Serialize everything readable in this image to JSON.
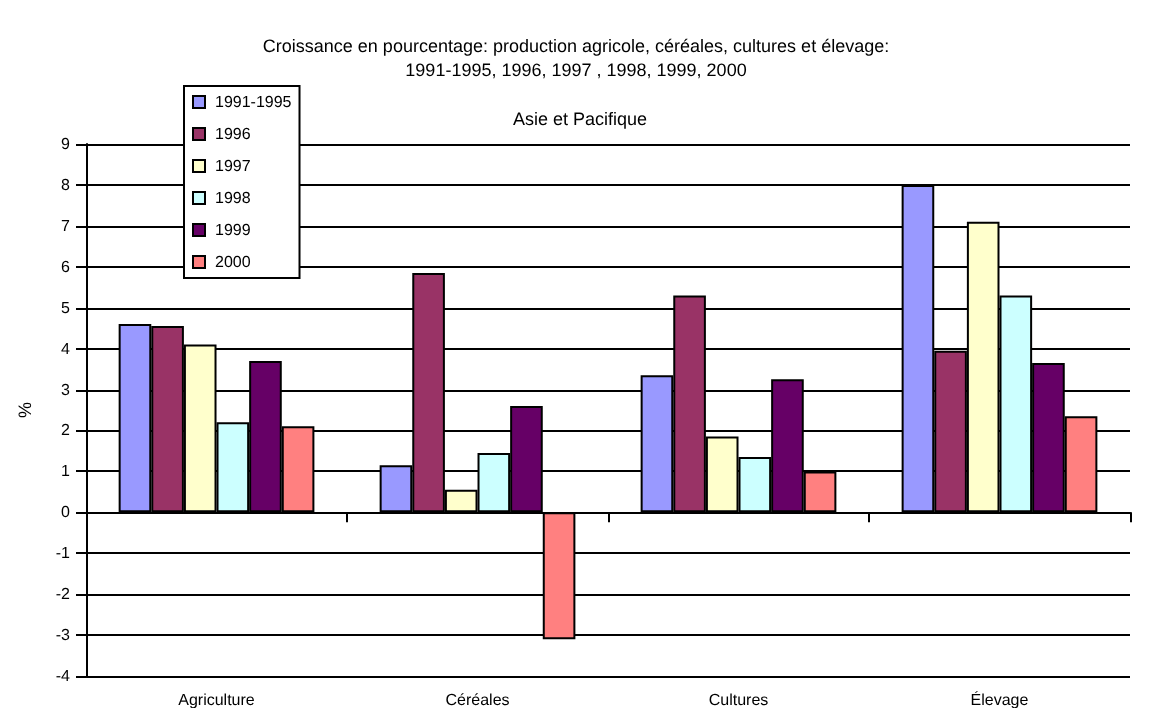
{
  "chart_data": {
    "type": "bar",
    "title": "Croissance en pourcentage: production agricole, céréales, cultures et élevage:\n1991-1995, 1996, 1997 , 1998, 1999, 2000",
    "subtitle": "Asie et Pacifique",
    "ylabel": "%",
    "categories": [
      "Agriculture",
      "Céréales",
      "Cultures",
      "Élevage"
    ],
    "series": [
      {
        "name": "1991-1995",
        "color": "#9999ff",
        "values": [
          4.6,
          1.15,
          3.35,
          8.0
        ]
      },
      {
        "name": "1996",
        "color": "#993366",
        "values": [
          4.55,
          5.85,
          5.3,
          3.95
        ]
      },
      {
        "name": "1997",
        "color": "#ffffcc",
        "values": [
          4.1,
          0.55,
          1.85,
          7.1
        ]
      },
      {
        "name": "1998",
        "color": "#ccffff",
        "values": [
          2.2,
          1.45,
          1.35,
          5.3
        ]
      },
      {
        "name": "1999",
        "color": "#660066",
        "values": [
          3.7,
          2.6,
          3.25,
          3.65
        ]
      },
      {
        "name": "2000",
        "color": "#ff8080",
        "values": [
          2.1,
          -3.1,
          1.0,
          2.35
        ]
      }
    ],
    "ylim": [
      -4,
      9
    ],
    "yticks": [
      -4,
      -3,
      -2,
      -1,
      0,
      1,
      2,
      3,
      4,
      5,
      6,
      7,
      8,
      9
    ],
    "grid": "y",
    "legend": "top left"
  }
}
